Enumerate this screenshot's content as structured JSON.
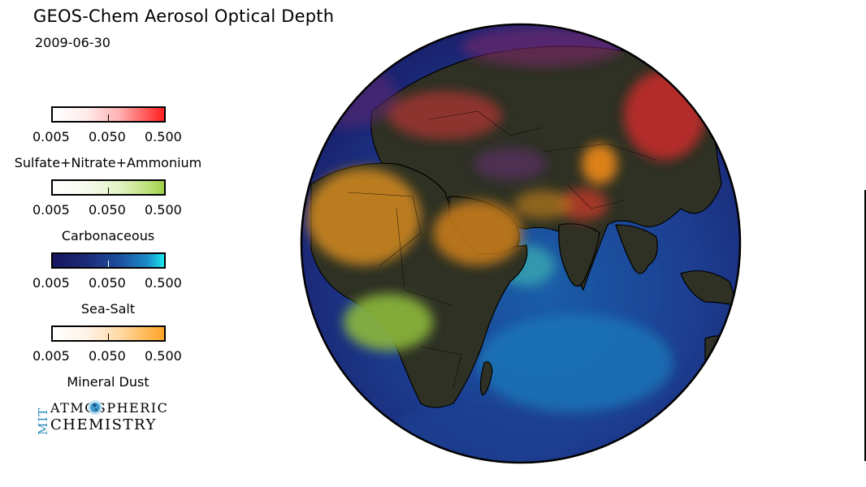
{
  "title": "GEOS-Chem Aerosol Optical Depth",
  "date": "2009-06-30",
  "legend": {
    "colorbars": [
      {
        "id": "snn",
        "label": "Sulfate+Nitrate+Ammonium",
        "ticks": [
          "0.005",
          "0.050",
          "0.500"
        ],
        "color": "#ff2020"
      },
      {
        "id": "carb",
        "label": "Carbonaceous",
        "ticks": [
          "0.005",
          "0.050",
          "0.500"
        ],
        "color": "#9ed048"
      },
      {
        "id": "salt",
        "label": "Sea-Salt",
        "ticks": [
          "0.005",
          "0.050",
          "0.500"
        ],
        "color": "#1ee6ee"
      },
      {
        "id": "dust",
        "label": "Mineral Dust",
        "ticks": [
          "0.005",
          "0.050",
          "0.500"
        ],
        "color": "#ffa42a"
      }
    ]
  },
  "logo": {
    "vertical": "MIT",
    "line1": "ATMOSPHERIC",
    "line2": "CHEMISTRY",
    "accent": "#2a8bbf",
    "icon": "globe-icon"
  },
  "map": {
    "projection": "orthographic",
    "ocean_color": "#1c2a7a",
    "land_color": "#2c2f24"
  }
}
